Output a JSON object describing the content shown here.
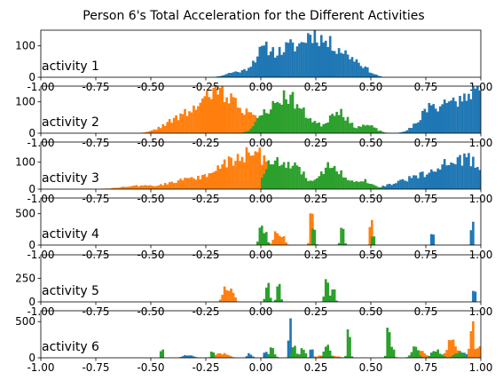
{
  "figure_title": "Person 6's Total Acceleration for the Different Activities",
  "colors": {
    "x": "#1f77b4",
    "y": "#ff7f0e",
    "z": "#2ca02c",
    "axis": "#000000"
  },
  "x_ticks": [
    "-1.00",
    "-0.75",
    "-0.50",
    "-0.25",
    "0.00",
    "0.25",
    "0.50",
    "0.75",
    "1.00"
  ],
  "chart_data": [
    {
      "type": "histogram",
      "title": "activity 1",
      "xlim": [
        -1,
        1
      ],
      "ylim": [
        0,
        150
      ],
      "yticks": [
        0,
        100
      ],
      "series": [
        {
          "color": "#1f77b4",
          "peaks": [
            [
              0.02,
              90,
              0.05
            ],
            [
              0.13,
              80,
              0.04
            ],
            [
              0.23,
              125,
              0.045
            ],
            [
              0.33,
              85,
              0.05
            ],
            [
              0.43,
              45,
              0.05
            ],
            [
              -0.12,
              15,
              0.04
            ]
          ],
          "range": [
            -0.3,
            0.55
          ],
          "seed": 11
        }
      ]
    },
    {
      "type": "histogram",
      "title": "activity 2",
      "xlim": [
        -1,
        1
      ],
      "ylim": [
        0,
        150
      ],
      "yticks": [
        0,
        100
      ],
      "series": [
        {
          "color": "#1f77b4",
          "peaks": [
            [
              0.88,
              95,
              0.07
            ],
            [
              0.98,
              110,
              0.04
            ],
            [
              0.76,
              55,
              0.05
            ]
          ],
          "range": [
            0.6,
            1.0
          ],
          "seed": 21
        },
        {
          "color": "#ff7f0e",
          "peaks": [
            [
              -0.18,
              115,
              0.06
            ],
            [
              -0.3,
              65,
              0.07
            ],
            [
              -0.06,
              55,
              0.05
            ],
            [
              -0.42,
              20,
              0.05
            ]
          ],
          "range": [
            -0.6,
            0.05
          ],
          "seed": 22
        },
        {
          "color": "#2ca02c",
          "peaks": [
            [
              0.12,
              115,
              0.05
            ],
            [
              0.02,
              55,
              0.04
            ],
            [
              0.35,
              75,
              0.04
            ],
            [
              0.22,
              35,
              0.04
            ],
            [
              0.48,
              25,
              0.04
            ]
          ],
          "range": [
            -0.25,
            0.6
          ],
          "seed": 23
        }
      ]
    },
    {
      "type": "histogram",
      "title": "activity 3",
      "xlim": [
        -1,
        1
      ],
      "ylim": [
        0,
        175
      ],
      "yticks": [
        0,
        100
      ],
      "series": [
        {
          "color": "#1f77b4",
          "peaks": [
            [
              0.87,
              105,
              0.06
            ],
            [
              0.72,
              45,
              0.06
            ],
            [
              0.97,
              75,
              0.04
            ],
            [
              0.6,
              15,
              0.05
            ]
          ],
          "range": [
            0.52,
            1.0
          ],
          "seed": 31
        },
        {
          "color": "#ff7f0e",
          "peaks": [
            [
              -0.02,
              125,
              0.06
            ],
            [
              -0.15,
              85,
              0.06
            ],
            [
              -0.32,
              40,
              0.08
            ],
            [
              -0.55,
              12,
              0.08
            ]
          ],
          "range": [
            -0.75,
            0.12
          ],
          "seed": 32
        },
        {
          "color": "#2ca02c",
          "peaks": [
            [
              0.05,
              90,
              0.04
            ],
            [
              0.15,
              80,
              0.05
            ],
            [
              0.32,
              95,
              0.04
            ],
            [
              0.45,
              35,
              0.05
            ]
          ],
          "range": [
            0.0,
            0.6
          ],
          "seed": 33
        }
      ]
    },
    {
      "type": "histogram",
      "title": "activity 4",
      "xlim": [
        -1,
        1
      ],
      "ylim": [
        0,
        750
      ],
      "yticks": [
        0,
        500
      ],
      "series": [
        {
          "color": "#1f77b4",
          "peaks": [
            [
              0.78,
              230,
              0.004
            ],
            [
              0.96,
              520,
              0.004
            ]
          ],
          "range": [
            0.76,
            0.98
          ],
          "seed": 41
        },
        {
          "color": "#ff7f0e",
          "peaks": [
            [
              0.07,
              230,
              0.012
            ],
            [
              0.1,
              160,
              0.01
            ],
            [
              0.23,
              590,
              0.006
            ],
            [
              0.5,
              580,
              0.005
            ]
          ],
          "range": [
            0.04,
            0.52
          ],
          "seed": 42
        },
        {
          "color": "#2ca02c",
          "peaks": [
            [
              0.0,
              380,
              0.008
            ],
            [
              0.02,
              220,
              0.008
            ],
            [
              0.24,
              330,
              0.006
            ],
            [
              0.37,
              300,
              0.007
            ],
            [
              0.51,
              280,
              0.004
            ]
          ],
          "range": [
            -0.03,
            0.53
          ],
          "seed": 43
        }
      ]
    },
    {
      "type": "histogram",
      "title": "activity 5",
      "xlim": [
        -1,
        1
      ],
      "ylim": [
        0,
        500
      ],
      "yticks": [
        0,
        250
      ],
      "series": [
        {
          "color": "#1f77b4",
          "peaks": [
            [
              0.97,
              160,
              0.004
            ]
          ],
          "range": [
            0.955,
            0.985
          ],
          "seed": 51
        },
        {
          "color": "#ff7f0e",
          "peaks": [
            [
              -0.16,
              170,
              0.012
            ],
            [
              -0.13,
              120,
              0.01
            ]
          ],
          "range": [
            -0.2,
            -0.1
          ],
          "seed": 52
        },
        {
          "color": "#2ca02c",
          "peaks": [
            [
              0.03,
              230,
              0.008
            ],
            [
              0.08,
              250,
              0.007
            ],
            [
              0.3,
              240,
              0.009
            ],
            [
              0.33,
              170,
              0.007
            ]
          ],
          "range": [
            0.0,
            0.36
          ],
          "seed": 53
        }
      ]
    },
    {
      "type": "histogram",
      "title": "activity 6",
      "xlim": [
        -1,
        1
      ],
      "ylim": [
        0,
        650
      ],
      "yticks": [
        0,
        500
      ],
      "series": [
        {
          "color": "#1f77b4",
          "peaks": [
            [
              0.13,
              480,
              0.004
            ],
            [
              0.14,
              260,
              0.004
            ],
            [
              0.23,
              160,
              0.005
            ],
            [
              0.02,
              110,
              0.005
            ],
            [
              0.78,
              100,
              0.008
            ],
            [
              -0.33,
              40,
              0.02
            ],
            [
              -0.05,
              60,
              0.01
            ],
            [
              0.92,
              60,
              0.02
            ],
            [
              0.98,
              120,
              0.008
            ]
          ],
          "range": [
            -0.5,
            1.0
          ],
          "seed": 61
        },
        {
          "color": "#ff7f0e",
          "peaks": [
            [
              0.96,
              590,
              0.008
            ],
            [
              0.87,
              280,
              0.02
            ],
            [
              0.73,
              100,
              0.02
            ],
            [
              0.99,
              260,
              0.005
            ],
            [
              -0.18,
              60,
              0.03
            ],
            [
              0.3,
              40,
              0.04
            ]
          ],
          "range": [
            -0.5,
            1.0
          ],
          "seed": 62
        },
        {
          "color": "#2ca02c",
          "peaks": [
            [
              0.58,
              570,
              0.006
            ],
            [
              0.4,
              480,
              0.006
            ],
            [
              0.3,
              200,
              0.012
            ],
            [
              0.15,
              180,
              0.01
            ],
            [
              0.19,
              160,
              0.01
            ],
            [
              0.05,
              130,
              0.012
            ],
            [
              0.7,
              150,
              0.015
            ],
            [
              0.6,
              180,
              0.006
            ],
            [
              -0.45,
              160,
              0.005
            ],
            [
              -0.22,
              100,
              0.006
            ],
            [
              0.8,
              100,
              0.02
            ],
            [
              0.9,
              80,
              0.02
            ]
          ],
          "range": [
            -0.6,
            1.0
          ],
          "seed": 63
        }
      ]
    }
  ]
}
